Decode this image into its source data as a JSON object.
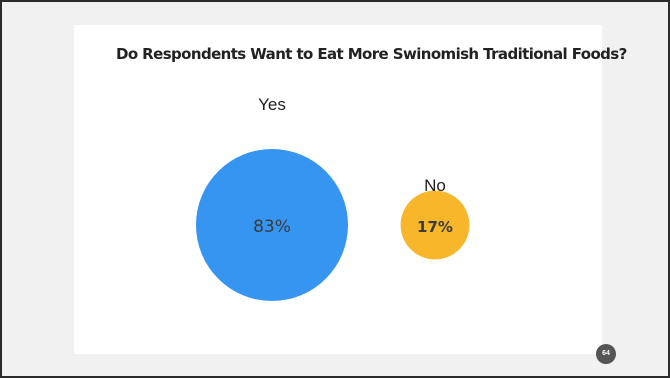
{
  "slide": {
    "page_number": "64"
  },
  "colors": {
    "yes": "#3595f0",
    "no": "#f8b62b",
    "title": "#222222",
    "label": "#1f1f1f",
    "inner_label": "#3b3b3b",
    "badge": "#555555"
  },
  "chart_data": {
    "type": "pie",
    "title": "Do Respondents Want to Eat More Swinomish Traditional Foods?",
    "slices": [
      {
        "label": "Yes",
        "value": 83,
        "value_label": "83%"
      },
      {
        "label": "No",
        "value": 17,
        "value_label": "17%"
      }
    ],
    "legend": "none"
  }
}
